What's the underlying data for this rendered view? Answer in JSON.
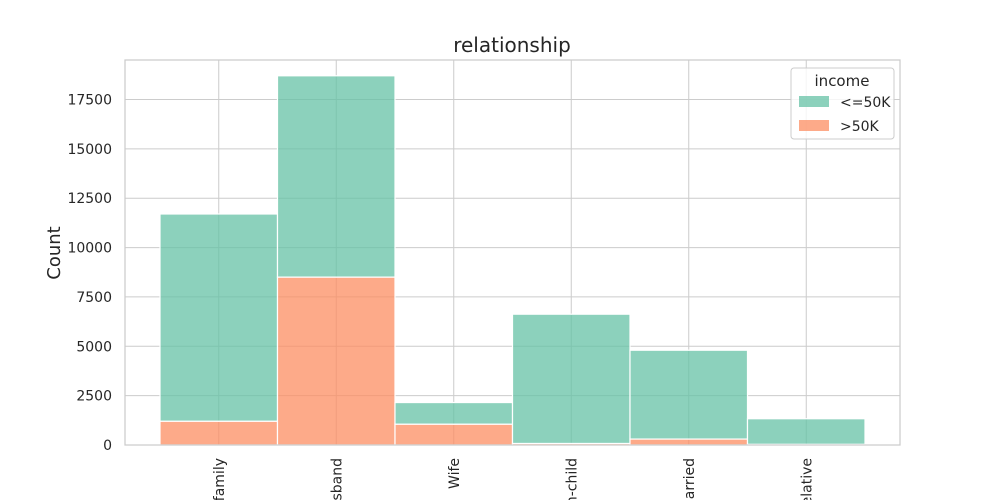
{
  "chart_data": {
    "type": "bar",
    "stacked": true,
    "title": "relationship",
    "xlabel": "",
    "ylabel": "Count",
    "categories": [
      "family",
      "sband",
      "Wife",
      "n-child",
      "arried",
      "elative"
    ],
    "series": [
      {
        "name": "<=50K",
        "color": "#66c2a5",
        "values": [
          10500,
          10200,
          1100,
          6550,
          4500,
          1300
        ]
      },
      {
        "name": ">50K",
        "color": "#fc8d62",
        "values": [
          1200,
          8500,
          1050,
          75,
          300,
          30
        ]
      }
    ],
    "ylim": [
      0,
      19500
    ],
    "yticks": [
      0,
      2500,
      5000,
      7500,
      10000,
      12500,
      15000,
      17500
    ],
    "ytick_labels": [
      "0",
      "2500",
      "5000",
      "7500",
      "10000",
      "12500",
      "15000",
      "17500"
    ],
    "grid": true,
    "legend": {
      "title": "income",
      "position": "top-right",
      "entries": [
        "<=50K",
        ">50K"
      ]
    }
  }
}
